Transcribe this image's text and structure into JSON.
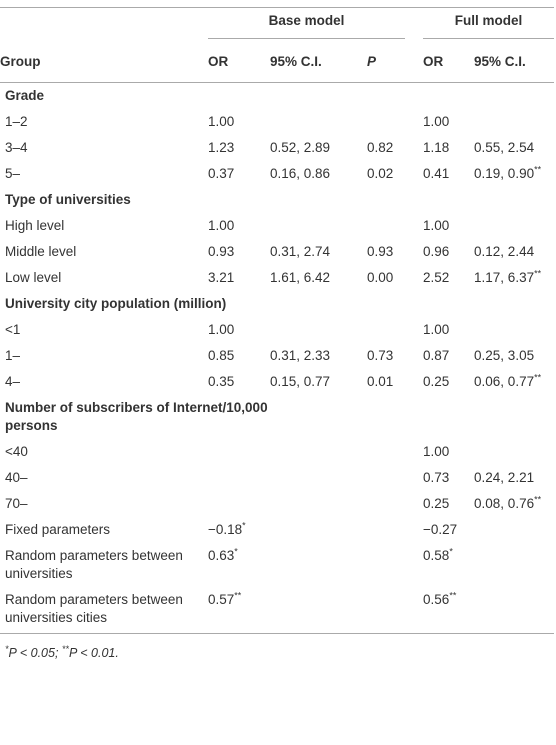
{
  "table": {
    "spans": [
      "Base model",
      "Full model"
    ],
    "columns": [
      "Group",
      "OR",
      "95% C.I.",
      "P",
      "OR",
      "95% C.I."
    ],
    "rows": [
      {
        "section": "Grade"
      },
      {
        "cells": [
          "1–2",
          "1.00",
          null,
          null,
          "1.00",
          null
        ]
      },
      {
        "cells": [
          "3–4",
          "1.23",
          "0.52, 2.89",
          "0.82",
          "1.18",
          "0.55, 2.54"
        ]
      },
      {
        "cells": [
          "5–",
          "0.37",
          "0.16, 0.86",
          "0.02",
          "0.41",
          {
            "text": "0.19, 0.90",
            "sup": "**"
          }
        ]
      },
      {
        "section": "Type of universities"
      },
      {
        "cells": [
          "High level",
          "1.00",
          null,
          null,
          "1.00",
          null
        ]
      },
      {
        "cells": [
          "Middle level",
          "0.93",
          "0.31, 2.74",
          "0.93",
          "0.96",
          "0.12, 2.44"
        ]
      },
      {
        "cells": [
          "Low level",
          "3.21",
          "1.61, 6.42",
          "0.00",
          "2.52",
          {
            "text": "1.17, 6.37",
            "sup": "**"
          }
        ]
      },
      {
        "section": "University city population (million)"
      },
      {
        "cells": [
          "<1",
          "1.00",
          null,
          null,
          "1.00",
          null
        ]
      },
      {
        "cells": [
          "1–",
          "0.85",
          "0.31, 2.33",
          "0.73",
          "0.87",
          "0.25, 3.05"
        ]
      },
      {
        "cells": [
          "4–",
          "0.35",
          "0.15, 0.77",
          "0.01",
          "0.25",
          {
            "text": "0.06, 0.77",
            "sup": "**"
          }
        ]
      },
      {
        "section": "Number of subscribers of Internet/10,000 persons"
      },
      {
        "cells": [
          "<40",
          null,
          null,
          null,
          "1.00",
          null
        ]
      },
      {
        "cells": [
          "40–",
          null,
          null,
          null,
          "0.73",
          "0.24, 2.21"
        ]
      },
      {
        "cells": [
          "70–",
          null,
          null,
          null,
          "0.25",
          {
            "text": "0.08, 0.76",
            "sup": "**"
          }
        ]
      },
      {
        "cells": [
          "Fixed parameters",
          {
            "text": "−0.18",
            "sup": "*"
          },
          null,
          null,
          "−0.27",
          null
        ]
      },
      {
        "cells": [
          "Random parameters between universities",
          {
            "text": "0.63",
            "sup": "*"
          },
          null,
          null,
          {
            "text": "0.58",
            "sup": "*"
          },
          null
        ]
      },
      {
        "cells": [
          "Random parameters between universities cities",
          {
            "text": "0.57",
            "sup": "**"
          },
          null,
          null,
          {
            "text": "0.56",
            "sup": "**"
          },
          null
        ]
      }
    ]
  },
  "footnote": [
    {
      "sup": "*",
      "text": "P < 0.05;"
    },
    {
      "sup": "**",
      "text": "P < 0.01."
    }
  ]
}
